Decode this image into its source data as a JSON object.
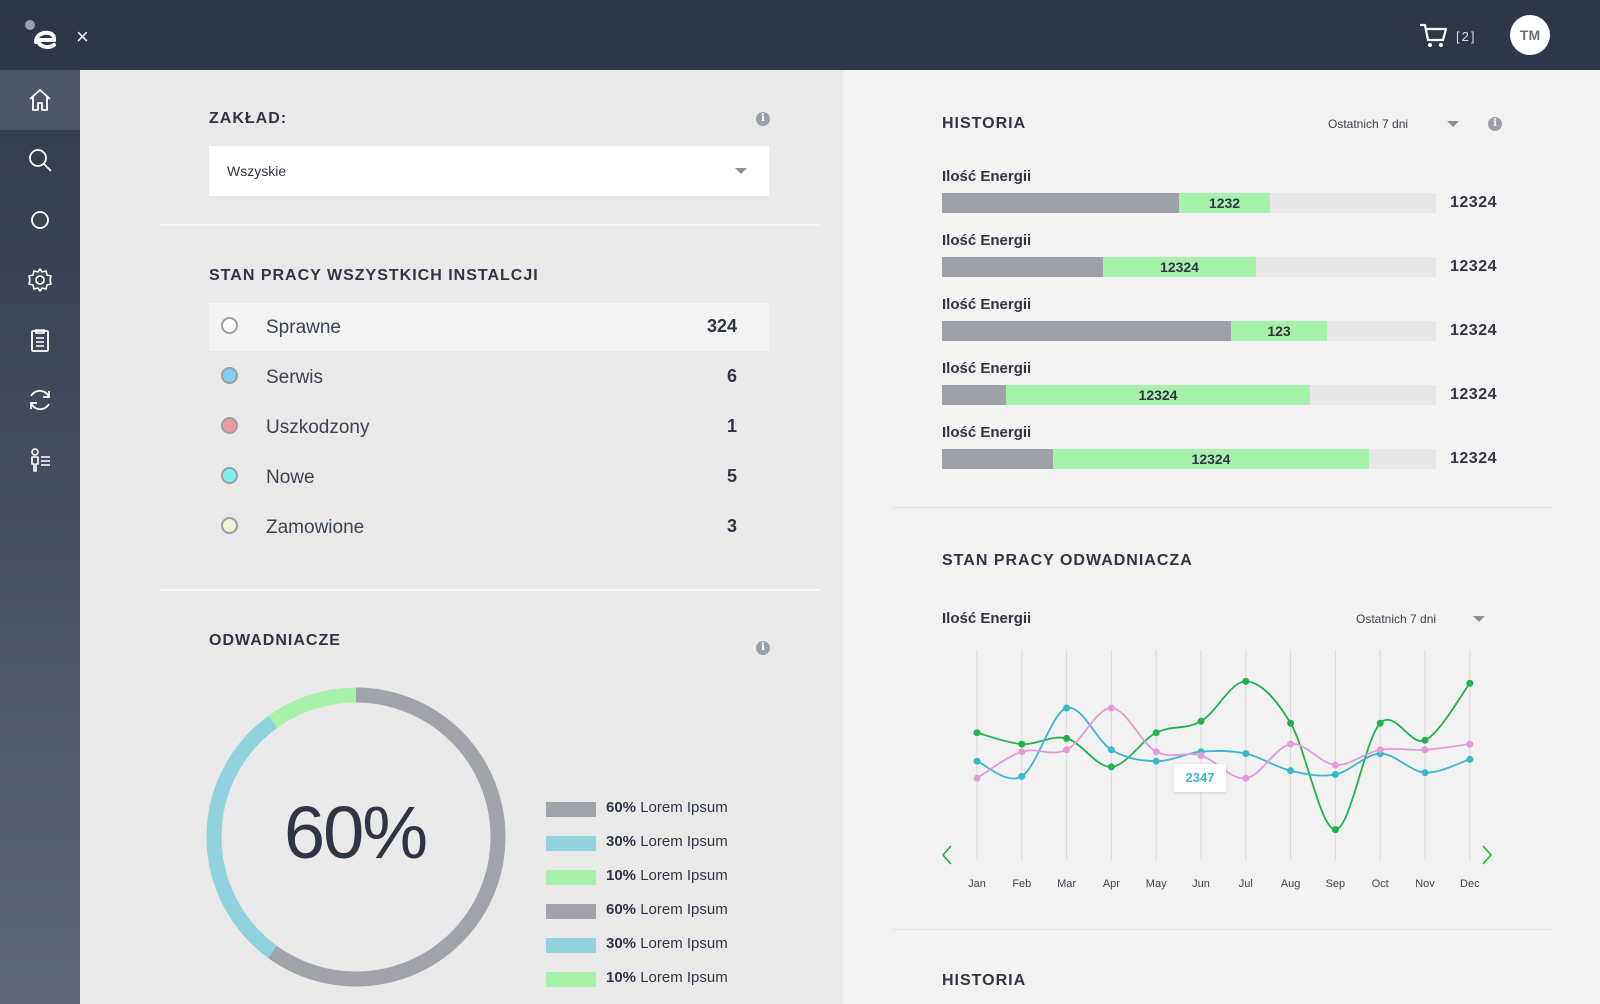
{
  "header": {
    "cart_count": "[2]",
    "avatar_initials": "TM",
    "close_glyph": "×"
  },
  "sidebar": {
    "items": [
      {
        "icon": "home-icon",
        "active": true
      },
      {
        "icon": "search-icon"
      },
      {
        "icon": "circle-icon"
      },
      {
        "icon": "gear-icon"
      },
      {
        "icon": "clipboard-icon"
      },
      {
        "icon": "refresh-icon"
      },
      {
        "icon": "user-list-icon"
      }
    ]
  },
  "zaklad": {
    "title": "ZAKŁAD:",
    "selected": "Wszyskie"
  },
  "stan_pracy": {
    "title": "STAN PRACY WSZYSTKICH INSTALCJI",
    "rows": [
      {
        "label": "Sprawne",
        "count": "324",
        "color": "#ffffff",
        "border": "#9aa0a8"
      },
      {
        "label": "Serwis",
        "count": "6",
        "color": "#7fd0f3",
        "border": "#9aa0a8"
      },
      {
        "label": "Uszkodzony",
        "count": "1",
        "color": "#ef9a9a",
        "border": "#9aa0a8"
      },
      {
        "label": "Nowe",
        "count": "5",
        "color": "#7ef0ee",
        "border": "#9aa0a8"
      },
      {
        "label": "Zamowione",
        "count": "3",
        "color": "#f5efd6",
        "border": "#9aa0a8"
      }
    ]
  },
  "odwadniacze": {
    "title": "ODWADNIACZE",
    "center_label": "60%",
    "donut": [
      {
        "fraction": 0.6,
        "color": "#a0a3aa"
      },
      {
        "fraction": 0.3,
        "color": "#90d3df"
      },
      {
        "fraction": 0.1,
        "color": "#a8f1ab"
      }
    ],
    "legend": [
      {
        "pct": "60%",
        "text": "Lorem Ipsum",
        "color": "#a0a3aa"
      },
      {
        "pct": "30%",
        "text": "Lorem Ipsum",
        "color": "#90d3df"
      },
      {
        "pct": "10%",
        "text": "Lorem Ipsum",
        "color": "#a8f1ab"
      },
      {
        "pct": "60%",
        "text": "Lorem Ipsum",
        "color": "#a0a3aa"
      },
      {
        "pct": "30%",
        "text": "Lorem Ipsum",
        "color": "#90d3df"
      },
      {
        "pct": "10%",
        "text": "Lorem Ipsum",
        "color": "#a8f1ab"
      }
    ]
  },
  "historia": {
    "title": "HISTORIA",
    "range": "Ostatnich 7 dni",
    "bars": [
      {
        "label": "Ilość Energii",
        "gray_fraction": 0.48,
        "green_fraction": 0.185,
        "green_value": "1232",
        "total": "12324"
      },
      {
        "label": "Ilość Energii",
        "gray_fraction": 0.325,
        "green_fraction": 0.31,
        "green_value": "12324",
        "total": "12324"
      },
      {
        "label": "Ilość Energii",
        "gray_fraction": 0.585,
        "green_fraction": 0.195,
        "green_value": "123",
        "total": "12324"
      },
      {
        "label": "Ilość Energii",
        "gray_fraction": 0.13,
        "green_fraction": 0.615,
        "green_value": "12324",
        "total": "12324"
      },
      {
        "label": "Ilość Energii",
        "gray_fraction": 0.225,
        "green_fraction": 0.64,
        "green_value": "12324",
        "total": "12324"
      }
    ]
  },
  "stan_odwadniacza": {
    "title": "STAN PRACY ODWADNIACZA",
    "label": "Ilość Energii",
    "range": "Ostatnich 7 dni",
    "tooltip": "2347"
  },
  "chart_data": {
    "type": "line",
    "x": [
      "Jan",
      "Feb",
      "Mar",
      "Apr",
      "May",
      "Jun",
      "Jul",
      "Aug",
      "Sep",
      "Oct",
      "Nov",
      "Dec"
    ],
    "series": [
      {
        "color": "#22b24c",
        "values": [
          67,
          61,
          64,
          49,
          67,
          73,
          94,
          72,
          16,
          72,
          63,
          93
        ]
      },
      {
        "color": "#3ab6cf",
        "values": [
          52,
          44,
          80,
          58,
          52,
          57,
          56,
          47,
          45,
          56,
          46,
          53
        ]
      },
      {
        "color": "#e49ad9",
        "values": [
          43,
          57,
          58,
          80,
          57,
          55,
          43,
          61,
          50,
          58,
          58,
          61
        ]
      }
    ],
    "ylim": [
      0,
      100
    ],
    "grid": "vertical"
  },
  "historia2": {
    "title": "HISTORIA"
  }
}
